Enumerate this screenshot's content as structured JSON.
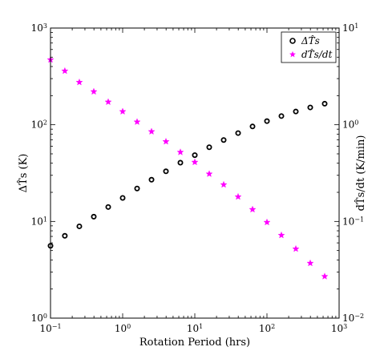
{
  "chart_data": {
    "type": "scatter",
    "xlabel": "Rotation Period (hrs)",
    "ylabel_left": "ΔT̂s (K)",
    "ylabel_right": "dT̂s/dt (K/min)",
    "x_scale": "log",
    "y_scale_left": "log",
    "y_scale_right": "log",
    "xlim": [
      0.1,
      1000
    ],
    "ylim_left": [
      1,
      1000
    ],
    "ylim_right": [
      0.01,
      10
    ],
    "grid": false,
    "legend_position": "top-right",
    "x_ticks": [
      {
        "base": "10",
        "exp": "−1"
      },
      {
        "base": "10",
        "exp": "0"
      },
      {
        "base": "10",
        "exp": "1"
      },
      {
        "base": "10",
        "exp": "2"
      },
      {
        "base": "10",
        "exp": "3"
      }
    ],
    "y_ticks_left": [
      {
        "base": "10",
        "exp": "0"
      },
      {
        "base": "10",
        "exp": "1"
      },
      {
        "base": "10",
        "exp": "2"
      },
      {
        "base": "10",
        "exp": "3"
      }
    ],
    "y_ticks_right": [
      {
        "base": "10",
        "exp": "−2"
      },
      {
        "base": "10",
        "exp": "−1"
      },
      {
        "base": "10",
        "exp": "0"
      },
      {
        "base": "10",
        "exp": "1"
      }
    ],
    "series": [
      {
        "name": "ΔT̂s",
        "axis": "left",
        "marker": "circle",
        "color": "#000000",
        "x": [
          0.1,
          0.158,
          0.251,
          0.398,
          0.631,
          1.0,
          1.585,
          2.512,
          3.981,
          6.31,
          10.0,
          15.85,
          25.12,
          39.81,
          63.1,
          100,
          158.5,
          251.2,
          398.1,
          631
        ],
        "y": [
          5.6,
          7.1,
          8.9,
          11.2,
          14.1,
          17.5,
          21.9,
          27,
          33,
          40.5,
          48.5,
          58.5,
          69.5,
          82,
          96,
          109,
          123,
          137,
          151,
          165
        ]
      },
      {
        "name": "dT̂s/dt",
        "axis": "right",
        "marker": "star",
        "color": "#ff00ff",
        "x": [
          0.1,
          0.158,
          0.251,
          0.398,
          0.631,
          1.0,
          1.585,
          2.512,
          3.981,
          6.31,
          10.0,
          15.85,
          25.12,
          39.81,
          63.1,
          100,
          158.5,
          251.2,
          398.1,
          631
        ],
        "y": [
          4.7,
          3.6,
          2.75,
          2.2,
          1.72,
          1.37,
          1.07,
          0.85,
          0.67,
          0.52,
          0.41,
          0.31,
          0.24,
          0.18,
          0.133,
          0.098,
          0.072,
          0.052,
          0.037,
          0.027
        ]
      }
    ]
  }
}
